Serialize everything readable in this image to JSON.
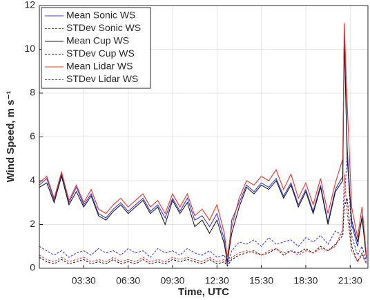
{
  "chart_data": {
    "type": "line",
    "x_label": "Time, UTC",
    "y_label": "Wind Speed, m s⁻¹",
    "x": [
      0.5,
      1.0,
      1.5,
      2.0,
      2.5,
      3.0,
      3.5,
      4.0,
      4.5,
      5.0,
      5.5,
      6.0,
      6.5,
      7.0,
      7.5,
      8.0,
      8.5,
      9.0,
      9.5,
      10.0,
      10.5,
      11.0,
      11.5,
      12.0,
      12.5,
      13.0,
      13.2,
      13.5,
      14.0,
      14.5,
      15.0,
      15.5,
      16.0,
      16.5,
      17.0,
      17.5,
      18.0,
      18.5,
      19.0,
      19.5,
      20.0,
      20.5,
      21.0,
      21.1,
      21.3,
      21.6,
      22.0,
      22.3,
      22.6
    ],
    "series": [
      {
        "name": "Mean Sonic WS",
        "color": "#3a3ad8",
        "linestyle": "solid",
        "values": [
          3.8,
          4.1,
          3.1,
          4.3,
          3.0,
          3.7,
          2.9,
          3.4,
          2.5,
          2.3,
          2.7,
          3.0,
          2.6,
          2.9,
          3.2,
          2.6,
          2.9,
          2.3,
          3.2,
          2.6,
          3.2,
          2.2,
          2.4,
          1.9,
          2.5,
          1.3,
          0.1,
          2.2,
          3.0,
          3.8,
          3.5,
          3.9,
          3.7,
          4.1,
          3.3,
          3.9,
          2.9,
          3.6,
          2.6,
          3.8,
          2.1,
          3.6,
          4.2,
          10.8,
          5.5,
          2.0,
          1.0,
          2.4,
          0.4
        ]
      },
      {
        "name": "STDev Sonic WS",
        "color": "#3a3ad8",
        "linestyle": "dotted",
        "values": [
          1.0,
          0.8,
          0.6,
          0.8,
          0.5,
          0.7,
          0.8,
          0.6,
          0.9,
          0.7,
          0.8,
          0.6,
          0.9,
          0.7,
          0.8,
          0.5,
          0.9,
          0.7,
          0.8,
          0.6,
          0.9,
          0.7,
          0.6,
          0.8,
          0.5,
          0.6,
          0.2,
          0.8,
          1.2,
          1.1,
          1.3,
          1.0,
          1.4,
          1.1,
          1.2,
          1.3,
          1.0,
          1.4,
          1.2,
          1.5,
          1.1,
          1.7,
          1.5,
          3.0,
          5.2,
          1.5,
          0.6,
          1.0,
          0.3
        ]
      },
      {
        "name": "Mean Cup WS",
        "color": "#1a1a1a",
        "linestyle": "solid",
        "values": [
          3.7,
          3.9,
          3.0,
          4.2,
          2.9,
          3.5,
          2.8,
          3.3,
          2.4,
          2.2,
          2.6,
          2.9,
          2.5,
          2.8,
          3.1,
          2.5,
          2.8,
          2.0,
          3.1,
          2.5,
          3.0,
          1.9,
          2.2,
          1.6,
          2.2,
          1.1,
          0.3,
          1.6,
          2.8,
          3.7,
          3.4,
          3.8,
          3.6,
          4.0,
          3.2,
          3.8,
          2.8,
          3.5,
          2.5,
          3.7,
          2.0,
          3.5,
          4.0,
          10.6,
          5.0,
          2.2,
          1.2,
          2.3,
          0.5
        ]
      },
      {
        "name": "STDev Cup WS",
        "color": "#1a1a1a",
        "linestyle": "dotted",
        "values": [
          0.5,
          0.3,
          0.2,
          0.4,
          0.2,
          0.3,
          0.4,
          0.2,
          0.3,
          0.2,
          0.4,
          0.2,
          0.3,
          0.2,
          0.4,
          0.2,
          0.3,
          0.2,
          0.4,
          0.3,
          0.4,
          0.3,
          0.2,
          0.4,
          0.2,
          0.3,
          0.1,
          0.4,
          0.6,
          0.7,
          0.8,
          0.6,
          0.7,
          0.9,
          0.6,
          0.8,
          0.7,
          0.9,
          0.7,
          1.0,
          0.8,
          1.1,
          1.5,
          2.8,
          3.2,
          1.0,
          0.3,
          0.7,
          0.2
        ]
      },
      {
        "name": "Mean Lidar WS",
        "color": "#e0342a",
        "linestyle": "solid",
        "values": [
          3.9,
          4.2,
          3.2,
          4.4,
          3.1,
          3.8,
          3.0,
          3.6,
          2.7,
          2.5,
          2.9,
          3.2,
          2.8,
          3.1,
          3.4,
          2.8,
          3.1,
          2.5,
          3.4,
          2.8,
          3.4,
          2.4,
          2.7,
          2.2,
          2.9,
          1.6,
          0.5,
          1.9,
          3.2,
          4.0,
          3.8,
          4.2,
          4.0,
          4.5,
          3.6,
          4.3,
          3.2,
          3.9,
          2.9,
          4.1,
          2.5,
          3.9,
          5.0,
          11.2,
          7.5,
          2.8,
          1.4,
          2.8,
          0.6
        ]
      },
      {
        "name": "STDev Lidar WS",
        "color": "#e0342a",
        "linestyle": "dotted",
        "values": [
          0.6,
          0.4,
          0.3,
          0.5,
          0.3,
          0.4,
          0.5,
          0.3,
          0.4,
          0.3,
          0.5,
          0.3,
          0.4,
          0.3,
          0.5,
          0.3,
          0.4,
          0.3,
          0.5,
          0.4,
          0.5,
          0.4,
          0.3,
          0.5,
          0.3,
          0.4,
          0.2,
          0.5,
          0.7,
          0.8,
          0.7,
          0.6,
          0.8,
          0.9,
          0.7,
          0.8,
          0.6,
          0.8,
          0.7,
          0.9,
          0.8,
          1.0,
          1.8,
          4.3,
          2.5,
          0.8,
          0.3,
          0.6,
          0.2
        ]
      }
    ],
    "xlim": [
      0.5,
      22.7
    ],
    "xticks": [
      {
        "value": 3.5,
        "label": "03:30"
      },
      {
        "value": 6.5,
        "label": "06:30"
      },
      {
        "value": 9.5,
        "label": "09:30"
      },
      {
        "value": 12.5,
        "label": "12:30"
      },
      {
        "value": 15.5,
        "label": "15:30"
      },
      {
        "value": 18.5,
        "label": "18:30"
      },
      {
        "value": 21.5,
        "label": "21:30"
      }
    ],
    "ylim": [
      0,
      12
    ],
    "yticks": [
      0,
      2,
      4,
      6,
      8,
      10,
      12
    ],
    "grid": true,
    "legend": "upper left"
  }
}
